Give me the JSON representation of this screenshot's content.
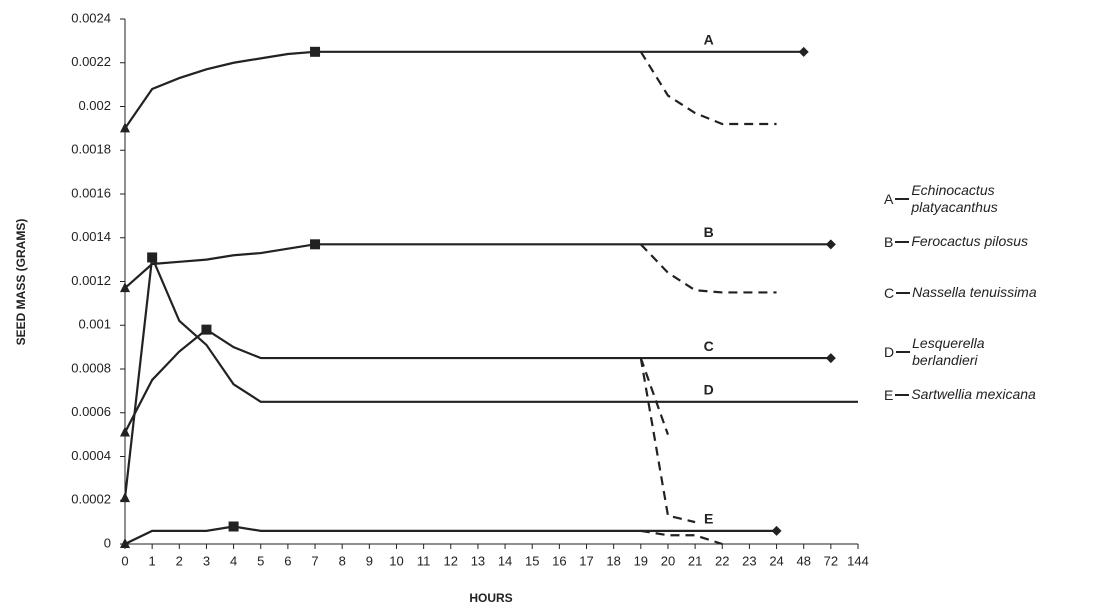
{
  "chart_data": {
    "type": "line",
    "y_label": "SEED MASS (GRAMS)",
    "x_label": "HOURS",
    "categories": [
      "0",
      "1",
      "2",
      "3",
      "4",
      "5",
      "6",
      "7",
      "8",
      "9",
      "10",
      "11",
      "12",
      "13",
      "14",
      "15",
      "16",
      "17",
      "18",
      "19",
      "20",
      "21",
      "22",
      "23",
      "24",
      "48",
      "72",
      "144"
    ],
    "ylim": [
      0,
      0.0024
    ],
    "yticks": [
      0,
      0.0002,
      0.0004,
      0.0006,
      0.0008,
      0.001,
      0.0012,
      0.0014,
      0.0016,
      0.0018,
      0.002,
      0.0022,
      0.0024
    ],
    "series": [
      {
        "name": "Echinocactus platyacanthus",
        "label": "A",
        "color": "#222222",
        "markers": {
          "0": "triangle",
          "7": "square",
          "25": "diamond"
        },
        "values": [
          0.0019,
          0.00208,
          0.00213,
          0.00217,
          0.0022,
          0.00222,
          0.00224,
          0.00225,
          0.00225,
          0.00225,
          0.00225,
          0.00225,
          0.00225,
          0.00225,
          0.00225,
          0.00225,
          0.00225,
          0.00225,
          0.00225,
          0.00225,
          0.00225,
          0.00225,
          0.00225,
          0.00225,
          0.00225,
          0.00225,
          null,
          null
        ]
      },
      {
        "name": "Ferocactus pilosus",
        "label": "B",
        "color": "#222222",
        "markers": {
          "0": "triangle",
          "7": "square",
          "26": "diamond"
        },
        "values": [
          0.00117,
          0.00128,
          0.00129,
          0.0013,
          0.00132,
          0.00133,
          0.00135,
          0.00137,
          0.00137,
          0.00137,
          0.00137,
          0.00137,
          0.00137,
          0.00137,
          0.00137,
          0.00137,
          0.00137,
          0.00137,
          0.00137,
          0.00137,
          0.00137,
          0.00137,
          0.00137,
          0.00137,
          0.00137,
          0.00137,
          0.00137,
          null
        ]
      },
      {
        "name": "Nassella tenuissima",
        "label": "C",
        "color": "#222222",
        "markers": {
          "0": "triangle",
          "3": "square",
          "26": "diamond"
        },
        "values": [
          0.00051,
          0.00075,
          0.00088,
          0.00098,
          0.0009,
          0.00085,
          0.00085,
          0.00085,
          0.00085,
          0.00085,
          0.00085,
          0.00085,
          0.00085,
          0.00085,
          0.00085,
          0.00085,
          0.00085,
          0.00085,
          0.00085,
          0.00085,
          0.00085,
          0.00085,
          0.00085,
          0.00085,
          0.00085,
          0.00085,
          0.00085,
          null
        ]
      },
      {
        "name": "Lesquerella berlandieri",
        "label": "D",
        "color": "#222222",
        "markers": {
          "0": "triangle",
          "1": "square"
        },
        "values": [
          0.00021,
          0.00131,
          0.00102,
          0.00091,
          0.00073,
          0.00065,
          0.00065,
          0.00065,
          0.00065,
          0.00065,
          0.00065,
          0.00065,
          0.00065,
          0.00065,
          0.00065,
          0.00065,
          0.00065,
          0.00065,
          0.00065,
          0.00065,
          0.00065,
          0.00065,
          0.00065,
          0.00065,
          0.00065,
          0.00065,
          0.00065,
          0.00065
        ]
      },
      {
        "name": "Sartwellia mexicana",
        "label": "E",
        "color": "#222222",
        "markers": {
          "0": "triangle",
          "4": "square",
          "24": "diamond"
        },
        "values": [
          0,
          6e-05,
          6e-05,
          6e-05,
          8e-05,
          6e-05,
          6e-05,
          6e-05,
          6e-05,
          6e-05,
          6e-05,
          6e-05,
          6e-05,
          6e-05,
          6e-05,
          6e-05,
          6e-05,
          6e-05,
          6e-05,
          6e-05,
          6e-05,
          6e-05,
          6e-05,
          6e-05,
          6e-05,
          null,
          null,
          null
        ]
      },
      {
        "color": "#222222",
        "dash": true,
        "values": [
          null,
          null,
          null,
          null,
          null,
          null,
          null,
          null,
          null,
          null,
          null,
          null,
          null,
          null,
          null,
          null,
          null,
          null,
          null,
          0.00225,
          0.00205,
          0.00197,
          0.00192,
          0.00192,
          0.00192,
          null,
          null,
          null
        ]
      },
      {
        "color": "#222222",
        "dash": true,
        "values": [
          null,
          null,
          null,
          null,
          null,
          null,
          null,
          null,
          null,
          null,
          null,
          null,
          null,
          null,
          null,
          null,
          null,
          null,
          null,
          0.00137,
          0.00124,
          0.00116,
          0.00115,
          0.00115,
          0.00115,
          null,
          null,
          null
        ]
      },
      {
        "color": "#222222",
        "dash": true,
        "values": [
          null,
          null,
          null,
          null,
          null,
          null,
          null,
          null,
          null,
          null,
          null,
          null,
          null,
          null,
          null,
          null,
          null,
          null,
          null,
          0.00085,
          0.0005,
          null,
          null,
          null,
          null,
          null,
          null,
          null
        ]
      },
      {
        "color": "#222222",
        "dash": true,
        "values": [
          null,
          null,
          null,
          null,
          null,
          null,
          null,
          null,
          null,
          null,
          null,
          null,
          null,
          null,
          null,
          null,
          null,
          null,
          null,
          0.00085,
          0.00013,
          0.0001,
          null,
          null,
          null,
          null,
          null,
          null
        ]
      },
      {
        "color": "#222222",
        "dash": true,
        "values": [
          null,
          null,
          null,
          null,
          null,
          null,
          null,
          null,
          null,
          null,
          null,
          null,
          null,
          null,
          null,
          null,
          null,
          null,
          null,
          6e-05,
          4e-05,
          4e-05,
          0,
          null,
          null,
          null,
          null,
          null
        ]
      }
    ]
  }
}
